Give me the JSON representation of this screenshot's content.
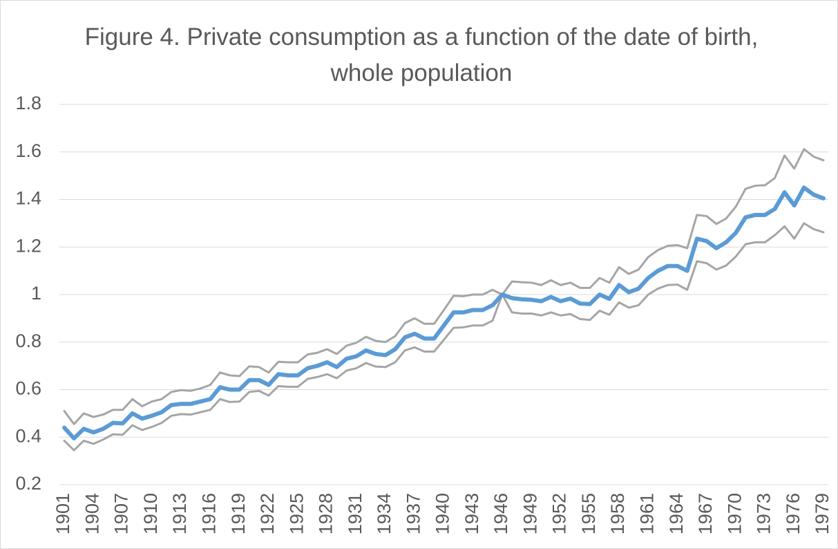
{
  "chart_data": {
    "type": "line",
    "title": "Figure 4. Private consumption as a function of the date of birth, whole population",
    "categories": [
      "1901",
      null,
      null,
      "1904",
      null,
      null,
      "1907",
      null,
      null,
      "1910",
      null,
      null,
      "1913",
      null,
      null,
      "1916",
      null,
      null,
      "1919",
      null,
      null,
      "1922",
      null,
      null,
      "1925",
      null,
      null,
      "1928",
      null,
      null,
      "1931",
      null,
      null,
      "1934",
      null,
      null,
      "1937",
      null,
      null,
      "1940",
      null,
      null,
      "1943",
      null,
      null,
      "1946",
      null,
      null,
      "1949",
      null,
      null,
      "1952",
      null,
      null,
      "1955",
      null,
      null,
      "1958",
      null,
      null,
      "1961",
      null,
      null,
      "1964",
      null,
      null,
      "1967",
      null,
      null,
      "1970",
      null,
      null,
      "1973",
      null,
      null,
      "1976",
      null,
      null,
      "1979"
    ],
    "series": [
      {
        "color": "#a5a5a5",
        "values": [
          0.51,
          0.455,
          0.5,
          0.485,
          0.495,
          0.515,
          0.515,
          0.56,
          0.53,
          0.55,
          0.56,
          0.59,
          0.598,
          0.595,
          0.605,
          0.62,
          0.672,
          0.66,
          0.657,
          0.698,
          0.695,
          0.672,
          0.717,
          0.715,
          0.715,
          0.748,
          0.755,
          0.77,
          0.75,
          0.785,
          0.797,
          0.822,
          0.805,
          0.8,
          0.825,
          0.88,
          0.9,
          0.877,
          0.877,
          0.935,
          0.995,
          0.993,
          1.0,
          1.0,
          1.02,
          1.0,
          1.055,
          1.052,
          1.05,
          1.04,
          1.06,
          1.04,
          1.05,
          1.028,
          1.028,
          1.07,
          1.05,
          1.115,
          1.087,
          1.105,
          1.158,
          1.187,
          1.205,
          1.208,
          1.195,
          1.335,
          1.33,
          1.297,
          1.32,
          1.37,
          1.445,
          1.458,
          1.46,
          1.49,
          1.585,
          1.53,
          1.612,
          1.58,
          1.565
        ]
      },
      {
        "color": "#a5a5a5",
        "values": [
          0.385,
          0.345,
          0.385,
          0.372,
          0.39,
          0.412,
          0.41,
          0.45,
          0.43,
          0.443,
          0.46,
          0.49,
          0.497,
          0.495,
          0.505,
          0.515,
          0.56,
          0.548,
          0.55,
          0.59,
          0.595,
          0.575,
          0.615,
          0.612,
          0.612,
          0.645,
          0.653,
          0.665,
          0.648,
          0.68,
          0.69,
          0.712,
          0.697,
          0.695,
          0.715,
          0.765,
          0.778,
          0.76,
          0.76,
          0.81,
          0.86,
          0.862,
          0.87,
          0.87,
          0.89,
          1.0,
          0.925,
          0.92,
          0.92,
          0.912,
          0.925,
          0.912,
          0.918,
          0.897,
          0.893,
          0.932,
          0.915,
          0.967,
          0.945,
          0.955,
          1.0,
          1.025,
          1.04,
          1.042,
          1.02,
          1.14,
          1.132,
          1.105,
          1.122,
          1.16,
          1.212,
          1.22,
          1.22,
          1.25,
          1.287,
          1.235,
          1.3,
          1.275,
          1.262
        ]
      },
      {
        "color": "#5b9bd5",
        "values": [
          0.44,
          0.395,
          0.435,
          0.42,
          0.435,
          0.46,
          0.458,
          0.5,
          0.478,
          0.49,
          0.505,
          0.535,
          0.54,
          0.54,
          0.55,
          0.56,
          0.61,
          0.6,
          0.6,
          0.64,
          0.64,
          0.62,
          0.665,
          0.66,
          0.66,
          0.69,
          0.7,
          0.715,
          0.695,
          0.73,
          0.74,
          0.765,
          0.75,
          0.745,
          0.77,
          0.82,
          0.835,
          0.815,
          0.815,
          0.87,
          0.925,
          0.925,
          0.935,
          0.935,
          0.955,
          1.0,
          0.985,
          0.98,
          0.978,
          0.972,
          0.99,
          0.972,
          0.983,
          0.962,
          0.96,
          1.0,
          0.982,
          1.04,
          1.01,
          1.025,
          1.07,
          1.1,
          1.12,
          1.12,
          1.1,
          1.235,
          1.225,
          1.195,
          1.22,
          1.26,
          1.325,
          1.335,
          1.335,
          1.36,
          1.43,
          1.375,
          1.45,
          1.42,
          1.405
        ]
      }
    ],
    "ylim": [
      0.2,
      1.8
    ],
    "yticks": [
      0.2,
      0.4,
      0.6,
      0.8,
      1,
      1.2,
      1.4,
      1.6,
      1.8
    ],
    "grid": true
  }
}
